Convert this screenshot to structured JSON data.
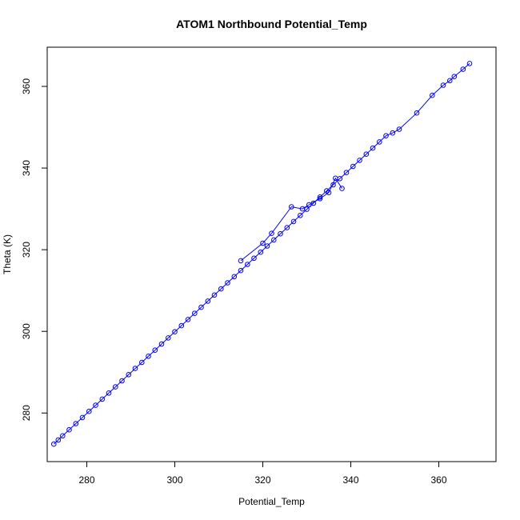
{
  "chart_data": {
    "type": "scatter",
    "title": "ATOM1 Northbound Potential_Temp",
    "xlabel": "Potential_Temp",
    "ylabel": "Theta (K)",
    "xlim": [
      271,
      373
    ],
    "ylim": [
      268.1,
      369.6
    ],
    "xticks": [
      "280",
      "300",
      "320",
      "340",
      "360"
    ],
    "yticks": [
      "280",
      "300",
      "320",
      "340",
      "360"
    ],
    "grid": false,
    "legend": "none",
    "marker": "open-circle",
    "connected": true,
    "color": "#0000ff",
    "series": [
      {
        "x": [
          272.5,
          273.5,
          274.5,
          276,
          277.5,
          279,
          280.5,
          282,
          283.5,
          285,
          286.5,
          288,
          289.5,
          291,
          292.5,
          294,
          295.5,
          297,
          298.5,
          300,
          301.5,
          303,
          304.5,
          306,
          307.5,
          309,
          310.5,
          312,
          313.5,
          315,
          316.5,
          318,
          319.5,
          321,
          322.5,
          324,
          325.5,
          327,
          328.5,
          330,
          331.5,
          333,
          334.5,
          336,
          337.5,
          339,
          340.5,
          342,
          343.5,
          345,
          346.5,
          348,
          349.5,
          351,
          355,
          358.5,
          361,
          362.5,
          363.5,
          365.5,
          367
        ],
        "y": [
          272.4,
          273.4,
          274.4,
          275.9,
          277.4,
          278.9,
          280.4,
          281.9,
          283.4,
          284.9,
          286.4,
          287.9,
          289.4,
          290.9,
          292.4,
          293.9,
          295.4,
          296.9,
          298.4,
          299.9,
          301.4,
          302.9,
          304.4,
          305.9,
          307.4,
          308.9,
          310.4,
          311.9,
          313.4,
          314.9,
          316.4,
          317.9,
          319.4,
          320.9,
          322.4,
          323.9,
          325.4,
          326.9,
          328.4,
          329.9,
          331.4,
          332.9,
          334.4,
          335.9,
          337.4,
          338.9,
          340.4,
          341.9,
          343.4,
          344.9,
          346.4,
          347.9,
          348.6,
          349.5,
          353.5,
          357.8,
          360.3,
          361.4,
          362.4,
          364.2,
          365.6
        ]
      },
      {
        "x": [
          315,
          320,
          322,
          326.5,
          329,
          330.5,
          333,
          335,
          336.5,
          338
        ],
        "y": [
          317.3,
          321.6,
          324,
          330.5,
          330,
          331,
          332.5,
          334,
          337.5,
          335
        ]
      }
    ]
  }
}
